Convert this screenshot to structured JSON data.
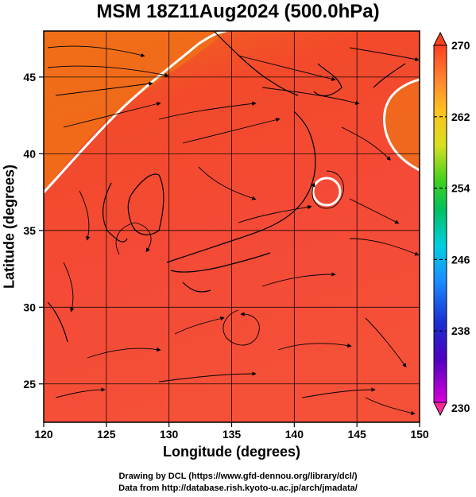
{
  "title": "MSM 18Z11Aug2024 (500.0hPa)",
  "map": {
    "x_axis": {
      "label": "Longitude (degrees)",
      "range": [
        120,
        150
      ],
      "ticks": [
        120,
        125,
        130,
        135,
        140,
        145,
        150
      ]
    },
    "y_axis": {
      "label": "Latitude  (degrees)",
      "range": [
        22.5,
        48
      ],
      "ticks": [
        25,
        30,
        35,
        40,
        45
      ]
    },
    "grid": true,
    "field": "temperature",
    "streamlines": true,
    "contour_color": "#ffffff",
    "cyclone_center": [
      142.5,
      38.3
    ]
  },
  "colorbar": {
    "range": [
      230,
      270
    ],
    "tick_labels": [
      "270",
      "262",
      "254",
      "246",
      "238",
      "230"
    ],
    "colors": [
      "#ff2a7f",
      "#c000c0",
      "#1020b0",
      "#2060ff",
      "#00c8ff",
      "#00c070",
      "#40d020",
      "#c8e020",
      "#ffd000",
      "#ff9030",
      "#ff5020"
    ]
  },
  "credits": {
    "line1": "Drawing by DCL (https://www.gfd-dennou.org/library/dcl/)",
    "line2": "Data from http://database.rish.kyoto-u.ac.jp/arch/jmadata/"
  }
}
